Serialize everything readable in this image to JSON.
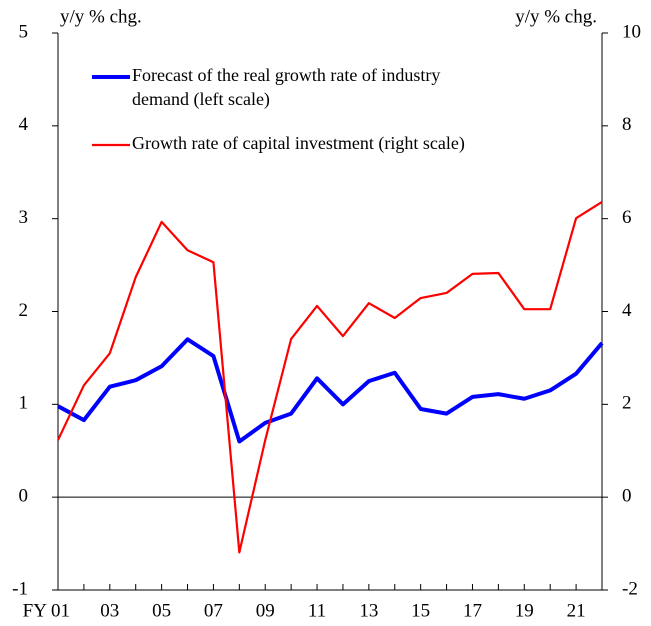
{
  "chart_data": {
    "type": "line",
    "y_label": "y/y % chg.",
    "y2_label": "y/y % chg.",
    "categories": [
      "FY 01",
      null,
      "03",
      null,
      "05",
      null,
      "07",
      null,
      "09",
      null,
      "11",
      null,
      "13",
      null,
      "15",
      null,
      "17",
      null,
      "19",
      null,
      "21",
      null
    ],
    "series": [
      {
        "name": "Forecast of the real growth rate of industry demand (left scale)",
        "color": "#0000ff",
        "values": [
          0.98,
          0.83,
          1.19,
          1.26,
          1.41,
          1.7,
          1.52,
          0.6,
          0.8,
          0.9,
          1.28,
          1.0,
          1.25,
          1.34,
          0.95,
          0.9,
          1.08,
          1.11,
          1.06,
          1.15,
          1.33,
          1.66
        ]
      },
      {
        "name": "Growth rate of capital investment (right scale)",
        "color": "#ff0000",
        "axis": "y2",
        "values": [
          1.23,
          2.41,
          3.1,
          4.74,
          5.93,
          5.32,
          5.06,
          -1.19,
          1.23,
          3.41,
          4.12,
          3.47,
          4.18,
          3.86,
          4.29,
          4.4,
          4.81,
          4.83,
          4.05,
          4.05,
          6.01,
          6.36
        ]
      }
    ],
    "ylim": [
      -1,
      5
    ],
    "yticks": [
      -1,
      0,
      1,
      2,
      3,
      4,
      5
    ],
    "y2lim": [
      -2,
      10
    ],
    "y2ticks": [
      -2,
      0,
      2,
      4,
      6,
      8,
      10
    ]
  }
}
